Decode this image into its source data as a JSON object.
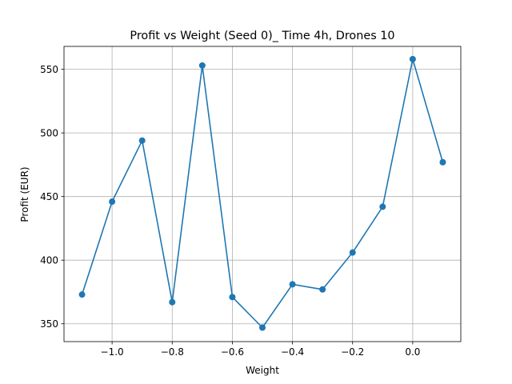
{
  "chart_data": {
    "type": "line",
    "title": "Profit vs Weight (Seed 0)_ Time 4h, Drones 10",
    "xlabel": "Weight",
    "ylabel": "Profit (EUR)",
    "xlim": [
      -1.16,
      0.16
    ],
    "ylim": [
      336,
      568
    ],
    "xticks": [
      -1.0,
      -0.8,
      -0.6,
      -0.4,
      -0.2,
      0.0
    ],
    "xtick_labels": [
      "−1.0",
      "−0.8",
      "−0.6",
      "−0.4",
      "−0.2",
      "0.0"
    ],
    "yticks": [
      350,
      400,
      450,
      500,
      550
    ],
    "ytick_labels": [
      "350",
      "400",
      "450",
      "500",
      "550"
    ],
    "grid": true,
    "series": [
      {
        "color": "#1f77b4",
        "marker": "circle",
        "x": [
          -1.1,
          -1.0,
          -0.9,
          -0.8,
          -0.7,
          -0.6,
          -0.5,
          -0.4,
          -0.3,
          -0.2,
          -0.1,
          0.0,
          0.1
        ],
        "y": [
          373,
          446,
          494,
          367,
          553,
          371,
          347,
          381,
          377,
          406,
          442,
          558,
          477
        ]
      }
    ]
  }
}
